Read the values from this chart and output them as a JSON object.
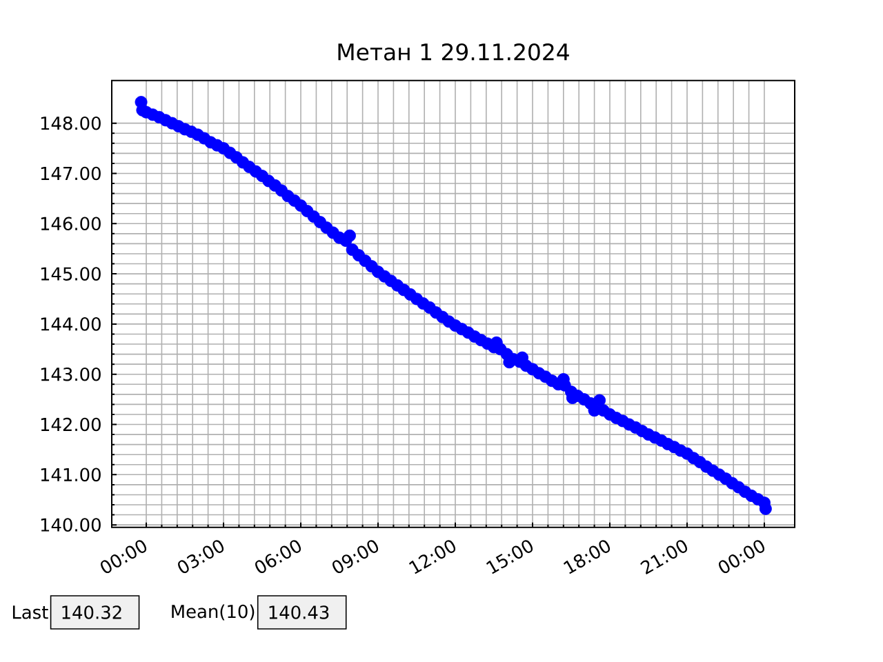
{
  "chart_data": {
    "type": "scatter",
    "title": "Метан 1 29.11.2024",
    "x": [
      -0.2,
      -0.15,
      0,
      0.25,
      0.5,
      0.75,
      1,
      1.25,
      1.5,
      1.75,
      2,
      2.25,
      2.5,
      2.75,
      3,
      3.25,
      3.5,
      3.75,
      4,
      4.25,
      4.5,
      4.75,
      5,
      5.25,
      5.5,
      5.75,
      6,
      6.25,
      6.5,
      6.75,
      7,
      7.25,
      7.5,
      7.75,
      7.9,
      8,
      8.25,
      8.5,
      8.75,
      9,
      9.25,
      9.5,
      9.75,
      10,
      10.25,
      10.5,
      10.75,
      11,
      11.25,
      11.5,
      11.75,
      12,
      12.25,
      12.5,
      12.75,
      13,
      13.25,
      13.5,
      13.6,
      13.75,
      14,
      14.1,
      14.25,
      14.5,
      14.6,
      14.75,
      15,
      15.25,
      15.5,
      15.75,
      16,
      16.2,
      16.25,
      16.5,
      16.55,
      16.75,
      17,
      17.25,
      17.4,
      17.6,
      17.75,
      18,
      18.25,
      18.5,
      18.75,
      19,
      19.25,
      19.5,
      19.75,
      20,
      20.25,
      20.5,
      20.75,
      21,
      21.25,
      21.5,
      21.75,
      22,
      22.25,
      22.5,
      22.75,
      23,
      23.25,
      23.5,
      23.75,
      24,
      24.05
    ],
    "values": [
      148.42,
      148.26,
      148.22,
      148.17,
      148.12,
      148.06,
      148.0,
      147.94,
      147.88,
      147.83,
      147.77,
      147.7,
      147.62,
      147.56,
      147.5,
      147.41,
      147.32,
      147.22,
      147.13,
      147.04,
      146.95,
      146.85,
      146.76,
      146.66,
      146.55,
      146.46,
      146.36,
      146.25,
      146.14,
      146.03,
      145.92,
      145.82,
      145.72,
      145.66,
      145.76,
      145.48,
      145.37,
      145.26,
      145.15,
      145.04,
      144.95,
      144.86,
      144.77,
      144.68,
      144.59,
      144.5,
      144.41,
      144.33,
      144.23,
      144.14,
      144.05,
      143.97,
      143.9,
      143.83,
      143.75,
      143.68,
      143.61,
      143.54,
      143.63,
      143.5,
      143.4,
      143.24,
      143.3,
      143.25,
      143.33,
      143.17,
      143.1,
      143.02,
      142.95,
      142.87,
      142.8,
      142.9,
      142.78,
      142.65,
      142.53,
      142.57,
      142.5,
      142.42,
      142.28,
      142.48,
      142.28,
      142.2,
      142.13,
      142.07,
      142.0,
      141.94,
      141.87,
      141.8,
      141.74,
      141.68,
      141.61,
      141.55,
      141.48,
      141.42,
      141.33,
      141.25,
      141.16,
      141.08,
      141.0,
      140.92,
      140.83,
      140.75,
      140.66,
      140.58,
      140.51,
      140.44,
      140.32
    ],
    "color": "#0000ff",
    "marker": "circle",
    "grid": true,
    "xlim": [
      -1.34,
      25.18
    ],
    "xticks": [
      {
        "value": 0,
        "label": "00:00"
      },
      {
        "value": 3,
        "label": "03:00"
      },
      {
        "value": 6,
        "label": "06:00"
      },
      {
        "value": 9,
        "label": "09:00"
      },
      {
        "value": 12,
        "label": "12:00"
      },
      {
        "value": 15,
        "label": "15:00"
      },
      {
        "value": 18,
        "label": "18:00"
      },
      {
        "value": 21,
        "label": "21:00"
      },
      {
        "value": 24,
        "label": "00:00"
      }
    ],
    "ylim": [
      139.95,
      148.85
    ],
    "yticks": [
      {
        "value": 140,
        "label": "140.00"
      },
      {
        "value": 141,
        "label": "141.00"
      },
      {
        "value": 142,
        "label": "142.00"
      },
      {
        "value": 143,
        "label": "143.00"
      },
      {
        "value": 144,
        "label": "144.00"
      },
      {
        "value": 145,
        "label": "145.00"
      },
      {
        "value": 146,
        "label": "146.00"
      },
      {
        "value": 147,
        "label": "147.00"
      },
      {
        "value": 148,
        "label": "148.00"
      }
    ],
    "annotations": [
      "Last",
      "140.32",
      "Mean(10)",
      "140.43"
    ]
  }
}
